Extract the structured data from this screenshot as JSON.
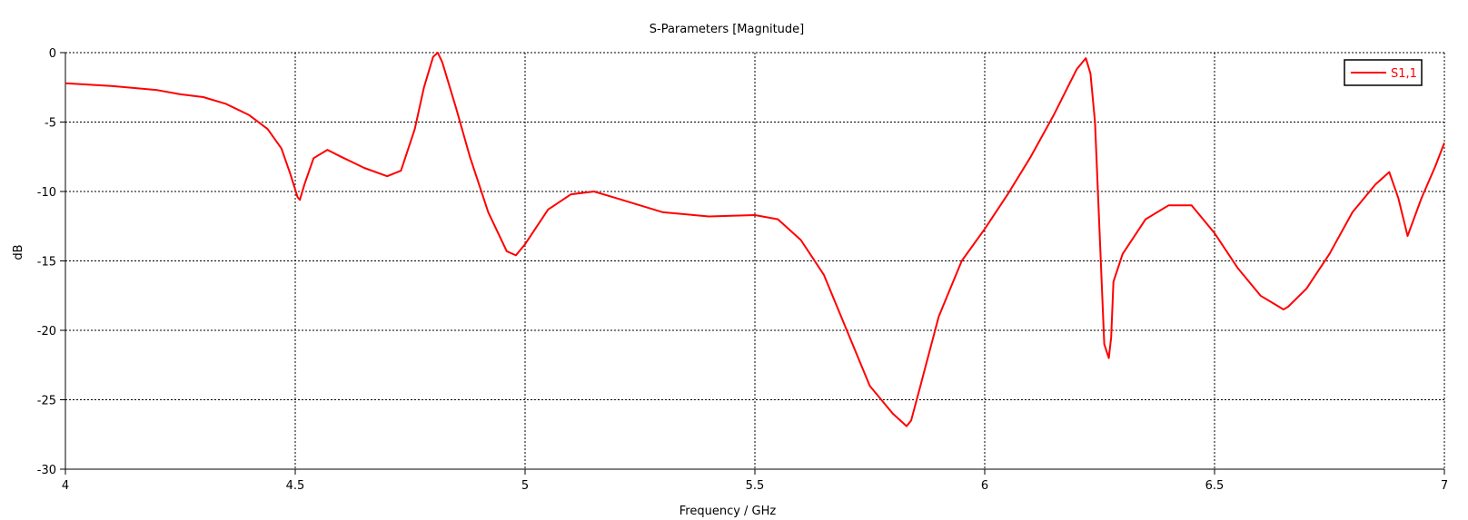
{
  "chart_data": {
    "type": "line",
    "title": "S-Parameters [Magnitude]",
    "xlabel": "Frequency / GHz",
    "ylabel": "dB",
    "xlim": [
      4,
      7
    ],
    "ylim": [
      -30,
      0
    ],
    "x_ticks": [
      "4",
      "4.5",
      "5",
      "5.5",
      "6",
      "6.5",
      "7"
    ],
    "y_ticks": [
      "0",
      "-5",
      "-10",
      "-15",
      "-20",
      "-25",
      "-30"
    ],
    "grid": true,
    "legend_position": "top-right",
    "colors": {
      "series": "#ff0000",
      "grid": "#000000",
      "axis": "#000000"
    },
    "series": [
      {
        "name": "S1,1",
        "x": [
          4.0,
          4.1,
          4.2,
          4.25,
          4.3,
          4.35,
          4.4,
          4.44,
          4.47,
          4.49,
          4.505,
          4.51,
          4.52,
          4.54,
          4.57,
          4.6,
          4.65,
          4.7,
          4.73,
          4.76,
          4.78,
          4.8,
          4.81,
          4.82,
          4.85,
          4.88,
          4.92,
          4.96,
          4.98,
          5.0,
          5.05,
          5.1,
          5.15,
          5.2,
          5.3,
          5.4,
          5.5,
          5.55,
          5.6,
          5.65,
          5.7,
          5.75,
          5.8,
          5.83,
          5.84,
          5.86,
          5.9,
          5.95,
          6.0,
          6.05,
          6.1,
          6.15,
          6.2,
          6.22,
          6.23,
          6.24,
          6.25,
          6.26,
          6.27,
          6.275,
          6.28,
          6.3,
          6.35,
          6.4,
          6.45,
          6.5,
          6.55,
          6.6,
          6.65,
          6.66,
          6.7,
          6.75,
          6.8,
          6.85,
          6.88,
          6.9,
          6.92,
          6.95,
          6.98,
          7.0
        ],
        "values": [
          -2.2,
          -2.4,
          -2.7,
          -3.0,
          -3.2,
          -3.7,
          -4.5,
          -5.5,
          -6.9,
          -8.8,
          -10.4,
          -10.6,
          -9.5,
          -7.6,
          -7.0,
          -7.5,
          -8.3,
          -8.9,
          -8.5,
          -5.5,
          -2.5,
          -0.3,
          0.0,
          -0.7,
          -4.0,
          -7.5,
          -11.5,
          -14.3,
          -14.6,
          -13.8,
          -11.3,
          -10.2,
          -10.0,
          -10.5,
          -11.5,
          -11.8,
          -11.7,
          -12.0,
          -13.5,
          -16.0,
          -20.0,
          -24.0,
          -26.0,
          -26.9,
          -26.5,
          -24.0,
          -19.0,
          -15.0,
          -12.7,
          -10.2,
          -7.5,
          -4.5,
          -1.2,
          -0.4,
          -1.5,
          -5.0,
          -13.0,
          -21.0,
          -22.0,
          -20.5,
          -16.5,
          -14.5,
          -12.0,
          -11.0,
          -11.0,
          -13.0,
          -15.5,
          -17.5,
          -18.5,
          -18.3,
          -17.0,
          -14.5,
          -11.5,
          -9.5,
          -8.6,
          -10.5,
          -13.2,
          -10.5,
          -8.2,
          -6.5
        ]
      }
    ]
  }
}
